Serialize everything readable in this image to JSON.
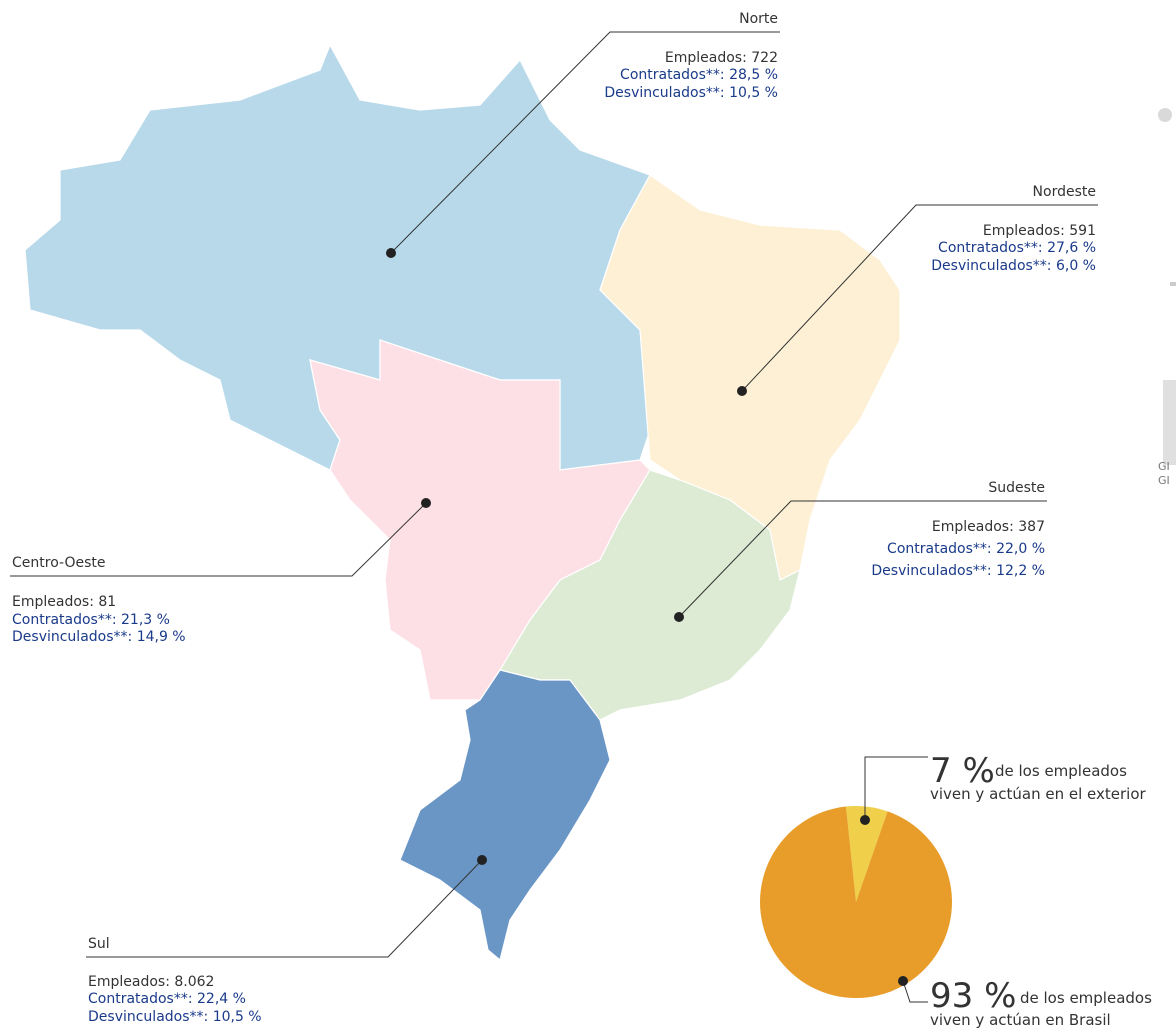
{
  "regions": [
    {
      "name": "Norte",
      "empleados": "Empleados: 722",
      "contratados": "Contratados**: 28,5 %",
      "desvinculados": "Desvinculados**: 10,5 %"
    },
    {
      "name": "Nordeste",
      "empleados": "Empleados: 591",
      "contratados": "Contratados**: 27,6 %",
      "desvinculados": "Desvinculados**: 6,0 %"
    },
    {
      "name": "Sudeste",
      "empleados": "Empleados: 387",
      "contratados": "Contratados**: 22,0 %",
      "desvinculados": "Desvinculados**: 12,2 %"
    },
    {
      "name": "Centro-Oeste",
      "empleados": "Empleados: 81",
      "contratados": "Contratados**: 21,3 %",
      "desvinculados": "Desvinculados**: 14,9 %"
    },
    {
      "name": "Sul",
      "empleados": "Empleados: 8.062",
      "contratados": "Contratados**: 22,4 %",
      "desvinculados": "Desvinculados**: 10,5 %"
    }
  ],
  "chart_data": {
    "type": "pie",
    "values": [
      7,
      93
    ],
    "value_labels": [
      "7 %",
      "93 %"
    ],
    "colors": [
      "#f0cf4a",
      "#e89d2a"
    ],
    "descriptions": [
      [
        "de los empleados",
        "viven y actúan en el exterior"
      ],
      [
        "de los empleados",
        "viven y actúan en Brasil"
      ]
    ]
  },
  "edge_text": [
    "GI",
    "GI"
  ]
}
